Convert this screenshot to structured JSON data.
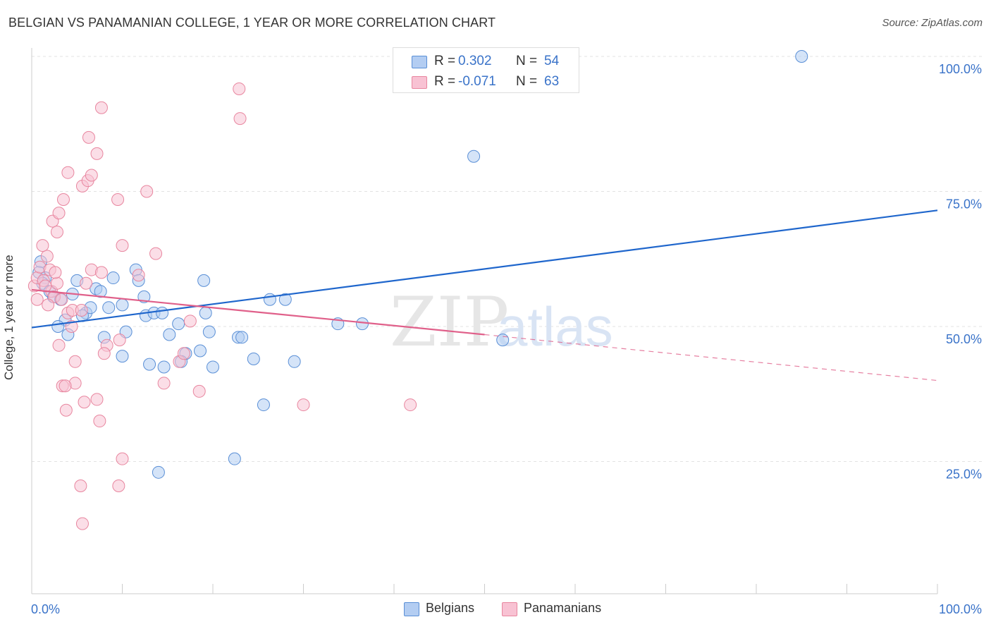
{
  "title": "BELGIAN VS PANAMANIAN COLLEGE, 1 YEAR OR MORE CORRELATION CHART",
  "source": "Source: ZipAtlas.com",
  "watermark": {
    "zip": "ZIP",
    "atlas": "atlas"
  },
  "legend_top": {
    "rows": [
      {
        "r_label": "R =",
        "r_value": "0.302",
        "n_label": "N =",
        "n_value": "54"
      },
      {
        "r_label": "R =",
        "r_value": "-0.071",
        "n_label": "N =",
        "n_value": "63"
      }
    ]
  },
  "legend_bottom": {
    "items": [
      "Belgians",
      "Panamanians"
    ]
  },
  "colors": {
    "blue_fill": "#b3cdf2",
    "blue_stroke": "#5a8fd6",
    "blue_line": "#1f66cc",
    "pink_fill": "#f8c2d3",
    "pink_stroke": "#e8869f",
    "pink_line": "#e0608a",
    "tick_text": "#3a73c9",
    "grid": "#e3e3e3"
  },
  "chart_data": {
    "type": "scatter",
    "title": "BELGIAN VS PANAMANIAN COLLEGE, 1 YEAR OR MORE CORRELATION CHART",
    "xlabel": "",
    "ylabel": "College, 1 year or more",
    "xlim": [
      0,
      100
    ],
    "ylim": [
      0,
      100
    ],
    "x_tick_labels": [
      "0.0%",
      "100.0%"
    ],
    "y_ticks": [
      25,
      50,
      75,
      100
    ],
    "y_tick_labels": [
      "25.0%",
      "50.0%",
      "75.0%",
      "100.0%"
    ],
    "grid": true,
    "legend_position": "top-center",
    "series": [
      {
        "name": "Belgians",
        "color": "#5a8fd6",
        "r": 0.302,
        "n": 54,
        "trend": {
          "x": [
            0,
            100
          ],
          "y": [
            49.8,
            71.5
          ]
        },
        "points": [
          [
            1.0,
            62.0
          ],
          [
            0.8,
            60.0
          ],
          [
            1.5,
            59.0
          ],
          [
            1.2,
            58.0
          ],
          [
            2.0,
            56.5
          ],
          [
            2.4,
            55.5
          ],
          [
            3.2,
            55.0
          ],
          [
            4.5,
            56.0
          ],
          [
            5.0,
            58.5
          ],
          [
            3.7,
            51.2
          ],
          [
            6.0,
            52.5
          ],
          [
            7.1,
            57.0
          ],
          [
            7.6,
            56.5
          ],
          [
            8.5,
            53.5
          ],
          [
            9.0,
            59.0
          ],
          [
            10.0,
            54.0
          ],
          [
            10.4,
            49.0
          ],
          [
            11.5,
            60.5
          ],
          [
            11.8,
            58.5
          ],
          [
            12.4,
            55.5
          ],
          [
            12.6,
            52.0
          ],
          [
            13.0,
            43.0
          ],
          [
            13.5,
            52.5
          ],
          [
            14.4,
            52.5
          ],
          [
            14.6,
            42.5
          ],
          [
            15.2,
            48.5
          ],
          [
            16.2,
            50.5
          ],
          [
            17.0,
            45.0
          ],
          [
            18.6,
            45.5
          ],
          [
            19.0,
            58.5
          ],
          [
            19.2,
            52.5
          ],
          [
            19.6,
            49.0
          ],
          [
            22.4,
            25.5
          ],
          [
            22.8,
            48.0
          ],
          [
            23.2,
            48.0
          ],
          [
            24.5,
            44.0
          ],
          [
            25.6,
            35.5
          ],
          [
            26.3,
            55.0
          ],
          [
            28.0,
            55.0
          ],
          [
            29.0,
            43.5
          ],
          [
            33.8,
            50.5
          ],
          [
            36.5,
            50.5
          ],
          [
            48.8,
            81.5
          ],
          [
            52.0,
            47.5
          ],
          [
            85.0,
            100.0
          ],
          [
            2.9,
            50.0
          ],
          [
            5.6,
            52.0
          ],
          [
            8.0,
            48.0
          ],
          [
            14.0,
            23.0
          ],
          [
            10.0,
            44.5
          ],
          [
            4.0,
            48.5
          ],
          [
            6.5,
            53.5
          ],
          [
            16.5,
            43.5
          ],
          [
            20.0,
            42.5
          ]
        ]
      },
      {
        "name": "Panamanians",
        "color": "#e8869f",
        "r": -0.071,
        "n": 63,
        "trend": {
          "x": [
            0,
            50
          ],
          "y": [
            56.8,
            48.5
          ],
          "dashed_to": {
            "x": 100,
            "y": 40.0
          }
        },
        "points": [
          [
            0.3,
            57.5
          ],
          [
            0.6,
            59.0
          ],
          [
            0.9,
            61.0
          ],
          [
            1.3,
            58.5
          ],
          [
            1.7,
            63.0
          ],
          [
            2.0,
            60.5
          ],
          [
            2.2,
            56.5
          ],
          [
            2.5,
            55.5
          ],
          [
            2.8,
            58.0
          ],
          [
            1.2,
            65.0
          ],
          [
            2.3,
            69.5
          ],
          [
            2.8,
            67.5
          ],
          [
            3.0,
            71.0
          ],
          [
            3.5,
            73.5
          ],
          [
            4.0,
            78.5
          ],
          [
            5.6,
            76.0
          ],
          [
            6.2,
            77.0
          ],
          [
            6.6,
            78.0
          ],
          [
            6.3,
            85.0
          ],
          [
            7.2,
            82.0
          ],
          [
            7.7,
            90.5
          ],
          [
            9.5,
            73.5
          ],
          [
            10.0,
            65.0
          ],
          [
            12.7,
            75.0
          ],
          [
            13.7,
            63.5
          ],
          [
            22.9,
            94.0
          ],
          [
            23.0,
            88.5
          ],
          [
            6.6,
            60.5
          ],
          [
            7.7,
            60.0
          ],
          [
            11.8,
            59.5
          ],
          [
            3.3,
            55.0
          ],
          [
            4.0,
            52.5
          ],
          [
            4.5,
            53.0
          ],
          [
            5.5,
            53.0
          ],
          [
            1.8,
            54.0
          ],
          [
            4.4,
            50.0
          ],
          [
            3.0,
            46.5
          ],
          [
            4.8,
            43.5
          ],
          [
            8.3,
            46.5
          ],
          [
            9.7,
            47.5
          ],
          [
            8.0,
            45.0
          ],
          [
            4.8,
            39.5
          ],
          [
            3.4,
            39.0
          ],
          [
            3.7,
            39.0
          ],
          [
            3.8,
            34.5
          ],
          [
            5.8,
            36.0
          ],
          [
            7.2,
            36.5
          ],
          [
            7.5,
            32.5
          ],
          [
            14.6,
            39.5
          ],
          [
            18.5,
            38.0
          ],
          [
            16.3,
            43.5
          ],
          [
            16.8,
            45.0
          ],
          [
            30.0,
            35.5
          ],
          [
            41.8,
            35.5
          ],
          [
            10.0,
            25.5
          ],
          [
            5.4,
            20.5
          ],
          [
            9.6,
            20.5
          ],
          [
            5.6,
            13.5
          ],
          [
            1.5,
            57.5
          ],
          [
            2.6,
            60.0
          ],
          [
            0.6,
            55.0
          ],
          [
            17.5,
            51.0
          ],
          [
            6.0,
            58.0
          ]
        ]
      }
    ]
  }
}
